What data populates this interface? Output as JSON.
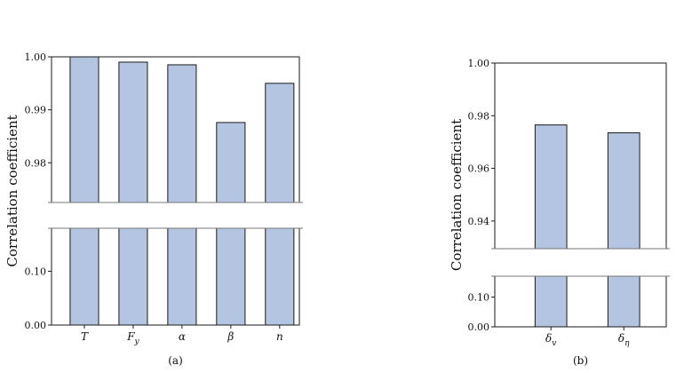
{
  "chart_data": [
    {
      "type": "bar",
      "panel_label": "(a)",
      "ylabel": "Correlation coefficient",
      "categories": [
        "T",
        "F_y",
        "α",
        "β",
        "n"
      ],
      "category_labels": [
        {
          "base": "T",
          "sub": ""
        },
        {
          "base": "F",
          "sub": "y"
        },
        {
          "base": "α",
          "sub": ""
        },
        {
          "base": "β",
          "sub": ""
        },
        {
          "base": "n",
          "sub": ""
        }
      ],
      "values": [
        1.0,
        0.999,
        0.9985,
        0.9876,
        0.995
      ],
      "broken_axis": true,
      "upper_ylim": [
        0.9725,
        1.0
      ],
      "lower_ylim": [
        0.0,
        0.18
      ],
      "upper_ticks": [
        "1.00",
        "0.99",
        "0.98"
      ],
      "upper_tick_values": [
        1.0,
        0.99,
        0.98
      ],
      "lower_ticks": [
        "0.10",
        "0.00"
      ],
      "lower_tick_values": [
        0.1,
        0.0
      ],
      "bar_color": "#b3c5e0",
      "grid": false
    },
    {
      "type": "bar",
      "panel_label": "(b)",
      "ylabel": "Correlation coefficient",
      "categories": [
        "δ_v",
        "δ_η"
      ],
      "category_labels": [
        {
          "base": "δ",
          "sub": "v"
        },
        {
          "base": "δ",
          "sub": "η"
        }
      ],
      "values": [
        0.9765,
        0.9735
      ],
      "broken_axis": true,
      "upper_ylim": [
        0.9295,
        1.0
      ],
      "lower_ylim": [
        0.0,
        0.17
      ],
      "upper_ticks": [
        "1.00",
        "0.98",
        "0.96",
        "0.94"
      ],
      "upper_tick_values": [
        1.0,
        0.98,
        0.96,
        0.94
      ],
      "lower_ticks": [
        "0.10",
        "0.00"
      ],
      "lower_tick_values": [
        0.1,
        0.0
      ],
      "bar_color": "#b3c5e0",
      "grid": false
    }
  ]
}
